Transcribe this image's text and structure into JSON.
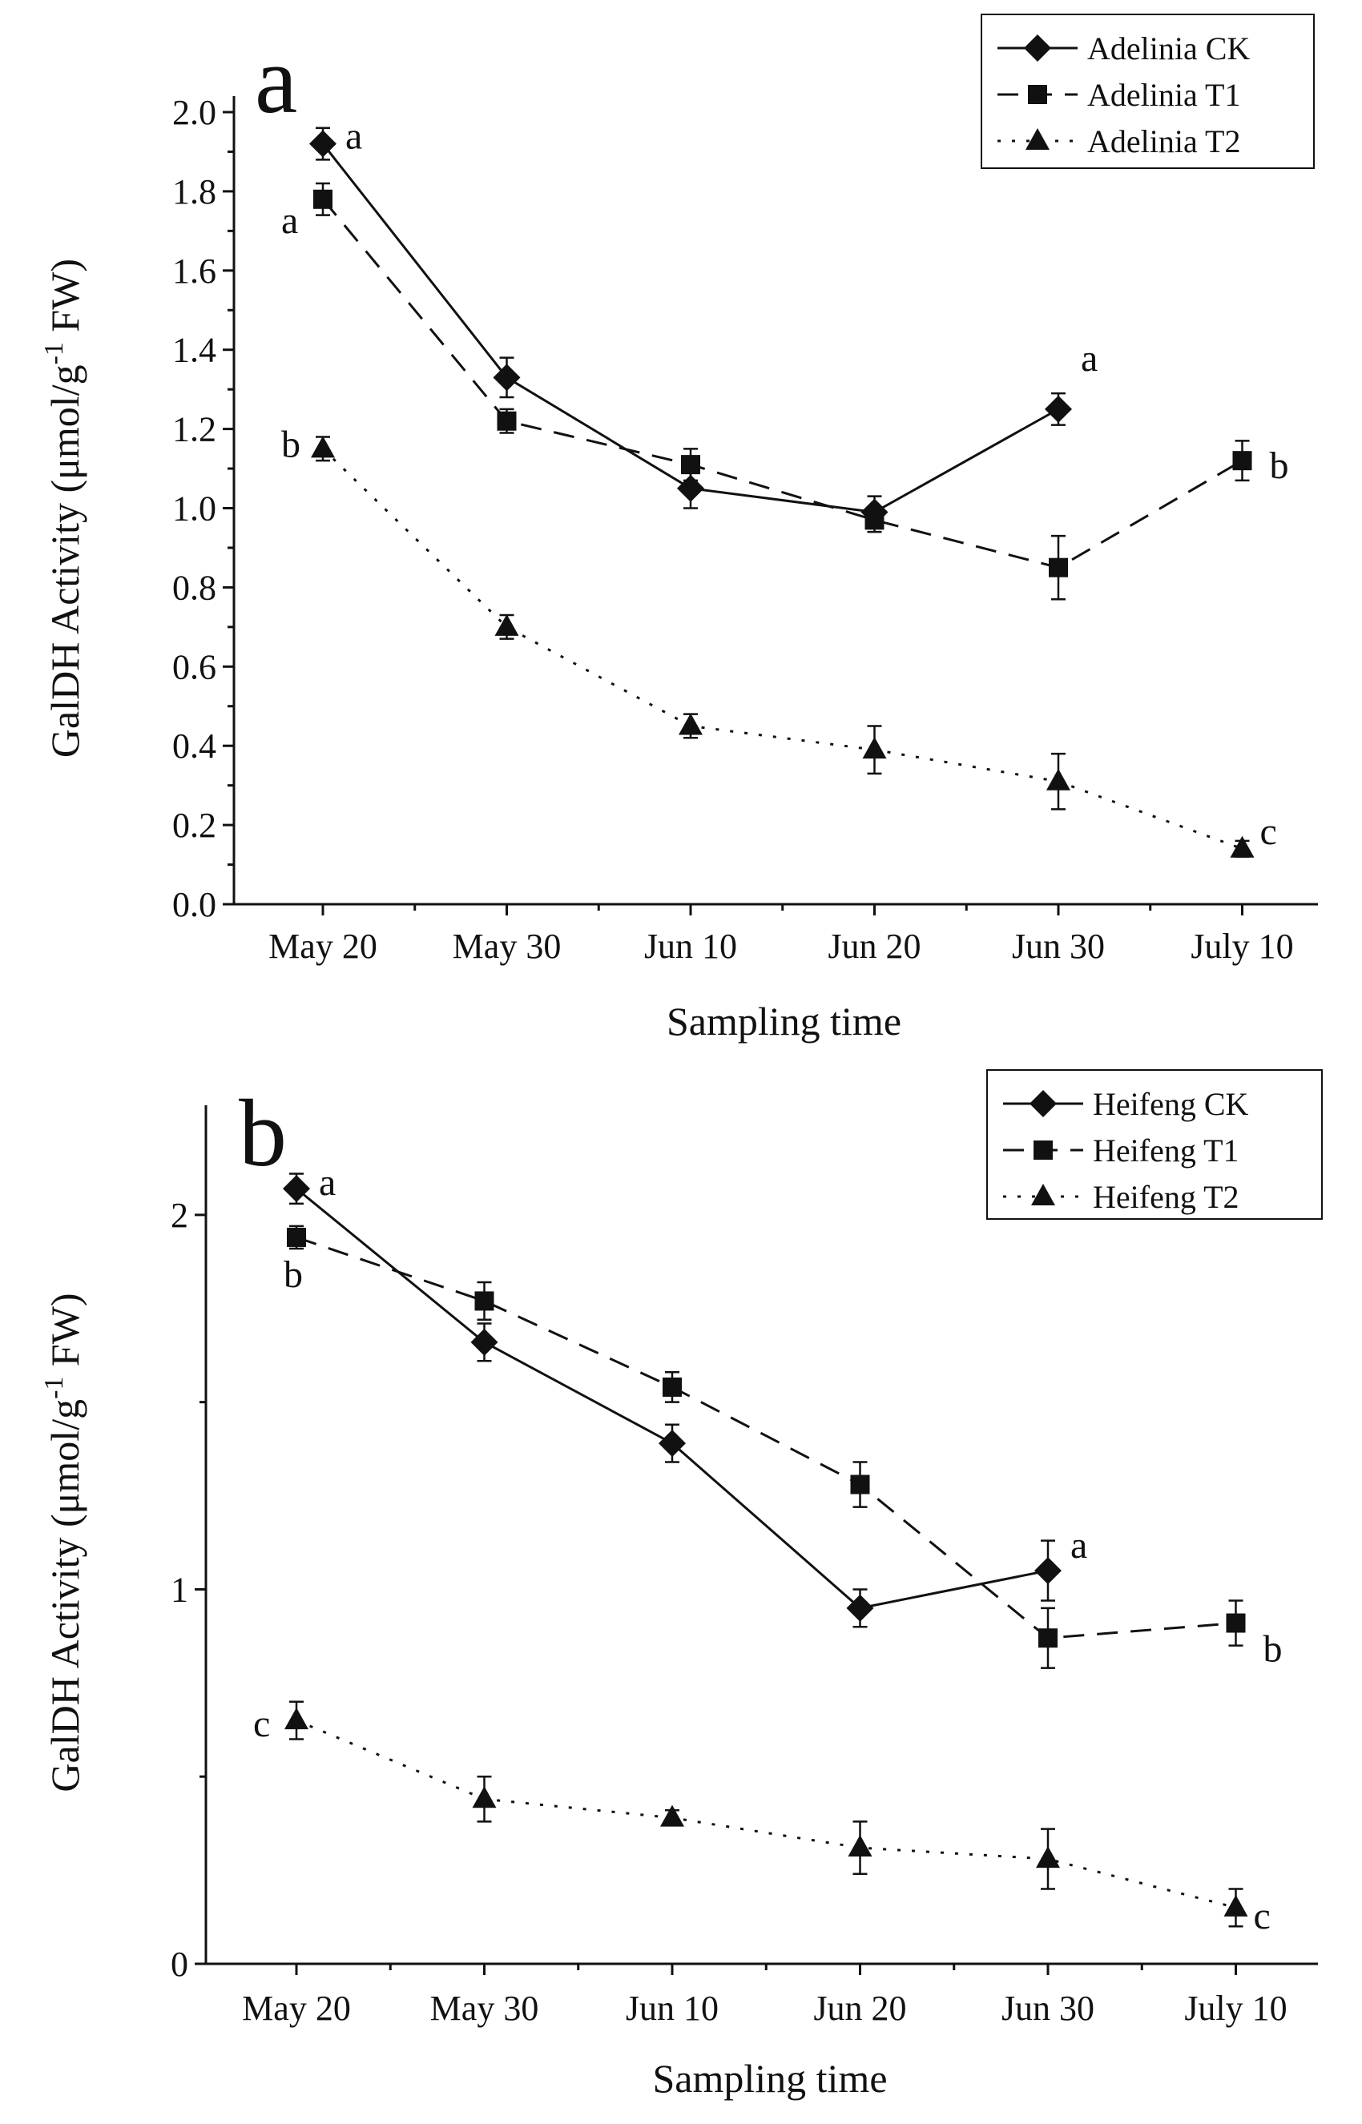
{
  "chart_data": [
    {
      "type": "line",
      "panel_label": "a",
      "xlabel": "Sampling time",
      "ylabel_prefix": "GalDH Activity (μmol/g",
      "ylabel_sup": "-1",
      "ylabel_suffix": " FW)",
      "categories": [
        "May 20",
        "May 30",
        "Jun 10",
        "Jun 20",
        "Jun 30",
        "July 10"
      ],
      "ylim": [
        0,
        2.0
      ],
      "yticks": [
        0.0,
        0.2,
        0.4,
        0.6,
        0.8,
        1.0,
        1.2,
        1.4,
        1.6,
        1.8,
        2.0
      ],
      "ytick_labels": [
        "0.0",
        "0.2",
        "0.4",
        "0.6",
        "0.8",
        "1.0",
        "1.2",
        "1.4",
        "1.6",
        "1.8",
        "2.0"
      ],
      "legend_position": "top-right",
      "series": [
        {
          "name": "Adelinia CK",
          "marker": "diamond",
          "dash": "solid",
          "values": [
            1.92,
            1.33,
            1.05,
            0.99,
            1.25,
            null
          ],
          "errors": [
            0.04,
            0.05,
            0.05,
            0.04,
            0.04,
            null
          ]
        },
        {
          "name": "Adelinia T1",
          "marker": "square",
          "dash": "dashed",
          "values": [
            1.78,
            1.22,
            1.11,
            0.97,
            0.85,
            1.12
          ],
          "errors": [
            0.04,
            0.03,
            0.04,
            0.03,
            0.08,
            0.05
          ]
        },
        {
          "name": "Adelinia T2",
          "marker": "triangle",
          "dash": "dotted",
          "values": [
            1.15,
            0.7,
            0.45,
            0.39,
            0.31,
            0.14
          ],
          "errors": [
            0.03,
            0.03,
            0.03,
            0.06,
            0.07,
            0.02
          ]
        }
      ],
      "annotations": [
        {
          "text": "a",
          "series": 0,
          "index": 0
        },
        {
          "text": "a",
          "series": 1,
          "index": 0
        },
        {
          "text": "b",
          "series": 2,
          "index": 0
        },
        {
          "text": "a",
          "series": 0,
          "index": 4
        },
        {
          "text": "b",
          "series": 1,
          "index": 5
        },
        {
          "text": "c",
          "series": 2,
          "index": 5
        }
      ]
    },
    {
      "type": "line",
      "panel_label": "b",
      "xlabel": "Sampling time",
      "ylabel_prefix": "GalDH Activity (μmol/g",
      "ylabel_sup": "-1",
      "ylabel_suffix": " FW)",
      "categories": [
        "May 20",
        "May 30",
        "Jun 10",
        "Jun 20",
        "Jun 30",
        "July 10"
      ],
      "ylim": [
        0,
        2.25
      ],
      "yticks": [
        0,
        1,
        2
      ],
      "ytick_labels": [
        "0",
        "1",
        "2"
      ],
      "minor_yticks": [
        0.5,
        1.5
      ],
      "legend_position": "top-right",
      "series": [
        {
          "name": "Heifeng CK",
          "marker": "diamond",
          "dash": "solid",
          "values": [
            2.07,
            1.66,
            1.39,
            0.95,
            1.05,
            null
          ],
          "errors": [
            0.04,
            0.05,
            0.05,
            0.05,
            0.08,
            null
          ]
        },
        {
          "name": "Heifeng T1",
          "marker": "square",
          "dash": "dashed",
          "values": [
            1.94,
            1.77,
            1.54,
            1.28,
            0.87,
            0.91
          ],
          "errors": [
            0.03,
            0.05,
            0.04,
            0.06,
            0.08,
            0.06
          ]
        },
        {
          "name": "Heifeng T2",
          "marker": "triangle",
          "dash": "dotted",
          "values": [
            0.65,
            0.44,
            0.39,
            0.31,
            0.28,
            0.15
          ],
          "errors": [
            0.05,
            0.06,
            0.02,
            0.07,
            0.08,
            0.05
          ]
        }
      ],
      "annotations": [
        {
          "text": "a",
          "series": 0,
          "index": 0
        },
        {
          "text": "b",
          "series": 1,
          "index": 0
        },
        {
          "text": "c",
          "series": 2,
          "index": 0
        },
        {
          "text": "a",
          "series": 0,
          "index": 4
        },
        {
          "text": "b",
          "series": 1,
          "index": 5
        },
        {
          "text": "c",
          "series": 2,
          "index": 5
        }
      ]
    }
  ]
}
